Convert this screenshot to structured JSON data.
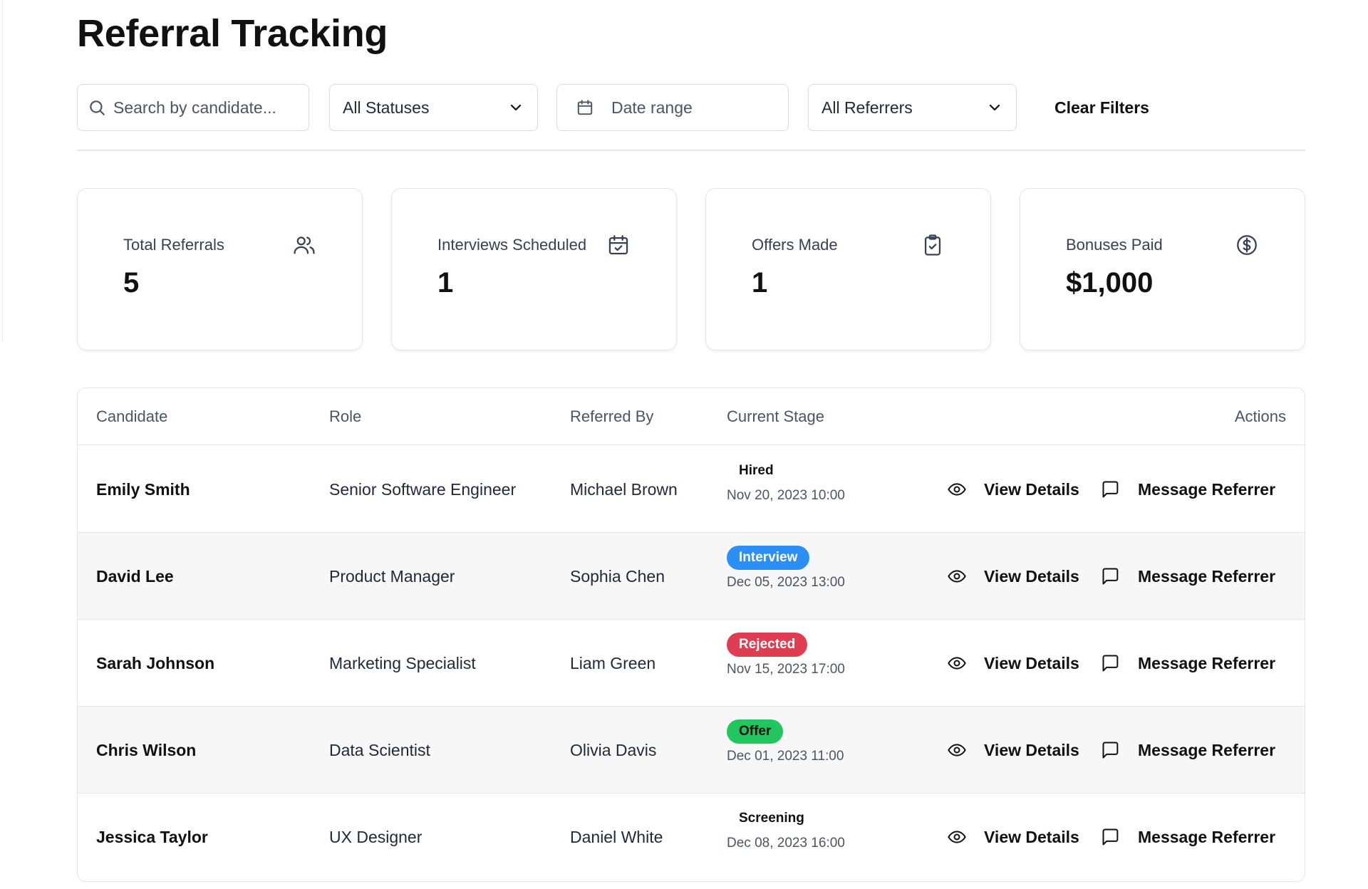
{
  "page": {
    "title": "Referral Tracking"
  },
  "filters": {
    "search_placeholder": "Search by candidate...",
    "status_value": "All Statuses",
    "date_placeholder": "Date range",
    "referrer_value": "All Referrers",
    "clear_label": "Clear Filters"
  },
  "stats": [
    {
      "label": "Total Referrals",
      "value": "5",
      "icon": "users-icon"
    },
    {
      "label": "Interviews Scheduled",
      "value": "1",
      "icon": "calendar-check-icon"
    },
    {
      "label": "Offers Made",
      "value": "1",
      "icon": "clipboard-check-icon"
    },
    {
      "label": "Bonuses Paid",
      "value": "$1,000",
      "icon": "dollar-circle-icon"
    }
  ],
  "table": {
    "headers": {
      "candidate": "Candidate",
      "role": "Role",
      "referred_by": "Referred By",
      "stage": "Current Stage",
      "actions": "Actions"
    },
    "action_labels": {
      "view": "View Details",
      "message": "Message Referrer"
    },
    "rows": [
      {
        "candidate": "Emily Smith",
        "role": "Senior Software Engineer",
        "referred_by": "Michael Brown",
        "stage": "Hired",
        "stage_time": "Nov 20, 2023 10:00"
      },
      {
        "candidate": "David Lee",
        "role": "Product Manager",
        "referred_by": "Sophia Chen",
        "stage": "Interview",
        "stage_time": "Dec 05, 2023 13:00"
      },
      {
        "candidate": "Sarah Johnson",
        "role": "Marketing Specialist",
        "referred_by": "Liam Green",
        "stage": "Rejected",
        "stage_time": "Nov 15, 2023 17:00"
      },
      {
        "candidate": "Chris Wilson",
        "role": "Data Scientist",
        "referred_by": "Olivia Davis",
        "stage": "Offer",
        "stage_time": "Dec 01, 2023 11:00"
      },
      {
        "candidate": "Jessica Taylor",
        "role": "UX Designer",
        "referred_by": "Daniel White",
        "stage": "Screening",
        "stage_time": "Dec 08, 2023 16:00"
      }
    ]
  },
  "colors": {
    "interview_badge": "#2b8ff5",
    "rejected_badge": "#df3d52",
    "offer_badge": "#22c55e",
    "alt_row_bg": "#f7f7f7",
    "border": "#e2e5ea"
  }
}
